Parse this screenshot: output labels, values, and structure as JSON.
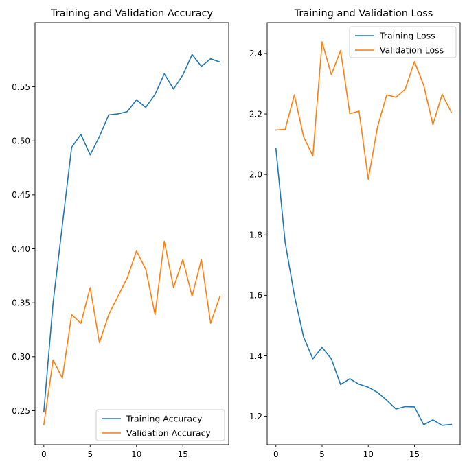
{
  "colors": {
    "blue": "#1f77b4",
    "orange": "#ff7f0e",
    "frame": "#000000",
    "legend_border": "#cccccc"
  },
  "chart_data": [
    {
      "type": "line",
      "title": "Training and Validation Accuracy",
      "xlabel": "",
      "ylabel": "",
      "xlim": [
        -0.95,
        19.95
      ],
      "ylim": [
        0.2185,
        0.6095
      ],
      "xticks": [
        0,
        5,
        10,
        15
      ],
      "xtick_labels": [
        "0",
        "5",
        "10",
        "15"
      ],
      "yticks": [
        0.25,
        0.3,
        0.35,
        0.4,
        0.45,
        0.5,
        0.55
      ],
      "ytick_labels": [
        "0.25",
        "0.30",
        "0.35",
        "0.40",
        "0.45",
        "0.50",
        "0.55"
      ],
      "legend": "lower-right",
      "x": [
        0,
        1,
        2,
        3,
        4,
        5,
        6,
        7,
        8,
        9,
        10,
        11,
        12,
        13,
        14,
        15,
        16,
        17,
        18,
        19
      ],
      "series": [
        {
          "name": "Training Accuracy",
          "color": "#1f77b4",
          "values": [
            0.249,
            0.35,
            0.422,
            0.494,
            0.506,
            0.487,
            0.504,
            0.524,
            0.525,
            0.527,
            0.538,
            0.531,
            0.543,
            0.562,
            0.548,
            0.561,
            0.58,
            0.569,
            0.576,
            0.573
          ]
        },
        {
          "name": "Validation Accuracy",
          "color": "#ff7f0e",
          "values": [
            0.237,
            0.297,
            0.28,
            0.339,
            0.331,
            0.364,
            0.313,
            0.339,
            0.356,
            0.373,
            0.398,
            0.381,
            0.339,
            0.407,
            0.364,
            0.39,
            0.356,
            0.39,
            0.331,
            0.356
          ]
        }
      ]
    },
    {
      "type": "line",
      "title": "Training and Validation Loss",
      "xlabel": "",
      "ylabel": "",
      "xlim": [
        -0.95,
        19.95
      ],
      "ylim": [
        1.106,
        2.502
      ],
      "xticks": [
        0,
        5,
        10,
        15
      ],
      "xtick_labels": [
        "0",
        "5",
        "10",
        "15"
      ],
      "yticks": [
        1.2,
        1.4,
        1.6,
        1.8,
        2.0,
        2.2,
        2.4
      ],
      "ytick_labels": [
        "1.2",
        "1.4",
        "1.6",
        "1.8",
        "2.0",
        "2.2",
        "2.4"
      ],
      "legend": "upper-right",
      "x": [
        0,
        1,
        2,
        3,
        4,
        5,
        6,
        7,
        8,
        9,
        10,
        11,
        12,
        13,
        14,
        15,
        16,
        17,
        18,
        19
      ],
      "series": [
        {
          "name": "Training Loss",
          "color": "#1f77b4",
          "values": [
            2.085,
            1.775,
            1.6,
            1.462,
            1.39,
            1.428,
            1.39,
            1.305,
            1.324,
            1.306,
            1.296,
            1.279,
            1.253,
            1.224,
            1.232,
            1.231,
            1.172,
            1.188,
            1.17,
            1.173
          ]
        },
        {
          "name": "Validation Loss",
          "color": "#ff7f0e",
          "values": [
            2.147,
            2.149,
            2.263,
            2.124,
            2.061,
            2.438,
            2.33,
            2.41,
            2.201,
            2.209,
            1.984,
            2.157,
            2.263,
            2.255,
            2.282,
            2.373,
            2.295,
            2.165,
            2.265,
            2.205
          ]
        }
      ]
    }
  ]
}
